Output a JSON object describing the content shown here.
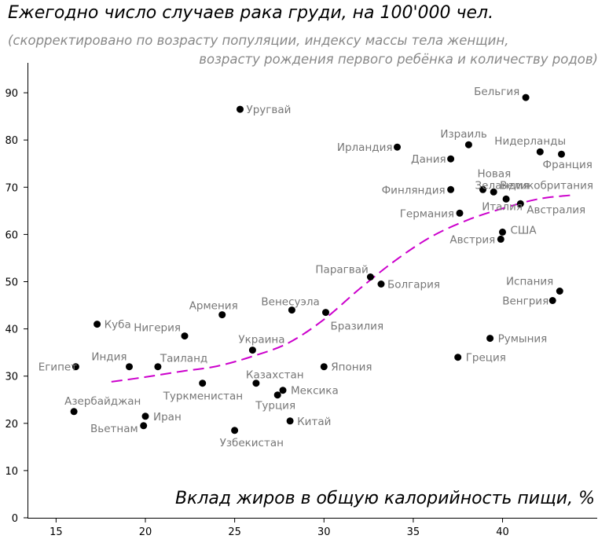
{
  "chart_data": {
    "type": "scatter",
    "title": "Ежегодно число случаев рака груди, на 100'000 чел.",
    "subtitle_line1": "(скорректировано по возрасту популяции, индексу массы тела женщин,",
    "subtitle_line2": "возрасту рождения первого ребёнка и количеству родов)",
    "xlabel": "Вклад жиров в общую калорийность пищи, %",
    "ylabel": "",
    "xlim": [
      13.4,
      45.3
    ],
    "ylim": [
      0,
      98
    ],
    "xticks": [
      15,
      20,
      25,
      30,
      35,
      40
    ],
    "yticks": [
      0,
      10,
      20,
      30,
      40,
      50,
      60,
      70,
      80,
      90
    ],
    "grid": false,
    "colors": {
      "points": "#000000",
      "labels": "#777777",
      "trend": "#cc00cc"
    },
    "points": [
      {
        "label": "Египет",
        "x": 16.1,
        "y": 32
      },
      {
        "label": "Азербайджан",
        "x": 16.0,
        "y": 22.5
      },
      {
        "label": "Куба",
        "x": 17.3,
        "y": 41
      },
      {
        "label": "Индия",
        "x": 19.1,
        "y": 32
      },
      {
        "label": "Иран",
        "x": 20.0,
        "y": 21.5
      },
      {
        "label": "Вьетнам",
        "x": 19.9,
        "y": 19.5
      },
      {
        "label": "Таиланд",
        "x": 20.7,
        "y": 32
      },
      {
        "label": "Нигерия",
        "x": 22.2,
        "y": 38.5
      },
      {
        "label": "Армения",
        "x": 24.3,
        "y": 43
      },
      {
        "label": "Туркменистан",
        "x": 23.2,
        "y": 28.5
      },
      {
        "label": "Уругвай",
        "x": 25.3,
        "y": 86.5
      },
      {
        "label": "Украина",
        "x": 26.0,
        "y": 35.5
      },
      {
        "label": "Узбекистан",
        "x": 25.0,
        "y": 18.5
      },
      {
        "label": "Казахстан",
        "x": 26.2,
        "y": 28.5
      },
      {
        "label": "Мексика",
        "x": 27.7,
        "y": 27
      },
      {
        "label": "Турция",
        "x": 27.4,
        "y": 26
      },
      {
        "label": "Китай",
        "x": 28.1,
        "y": 20.5
      },
      {
        "label": "Венесуэла",
        "x": 28.2,
        "y": 44
      },
      {
        "label": "Бразилия",
        "x": 30.1,
        "y": 43.5
      },
      {
        "label": "Япония",
        "x": 30.0,
        "y": 32
      },
      {
        "label": "Парагвай",
        "x": 32.6,
        "y": 51
      },
      {
        "label": "Болгария",
        "x": 33.2,
        "y": 49.5
      },
      {
        "label": "Ирландия",
        "x": 34.1,
        "y": 78.5
      },
      {
        "label": "Дания",
        "x": 37.1,
        "y": 76
      },
      {
        "label": "Израиль",
        "x": 38.1,
        "y": 79
      },
      {
        "label": "Финляндия",
        "x": 37.1,
        "y": 69.5
      },
      {
        "label": "Германия",
        "x": 37.6,
        "y": 64.5
      },
      {
        "label": "Новая Зеландия",
        "x": 38.9,
        "y": 69.5
      },
      {
        "label": "Италия",
        "x": 39.5,
        "y": 69
      },
      {
        "label": "Великобритания",
        "x": 40.2,
        "y": 67.5
      },
      {
        "label": "Австралия",
        "x": 41.0,
        "y": 66.5
      },
      {
        "label": "США",
        "x": 40.0,
        "y": 60.5
      },
      {
        "label": "Австрия",
        "x": 39.9,
        "y": 59
      },
      {
        "label": "Бельгия",
        "x": 41.3,
        "y": 89
      },
      {
        "label": "Нидерланды",
        "x": 42.1,
        "y": 77.5
      },
      {
        "label": "Франция",
        "x": 43.3,
        "y": 77
      },
      {
        "label": "Испания",
        "x": 43.2,
        "y": 48
      },
      {
        "label": "Венгрия",
        "x": 42.8,
        "y": 46
      },
      {
        "label": "Румыния",
        "x": 39.3,
        "y": 38
      },
      {
        "label": "Греция",
        "x": 37.5,
        "y": 34
      }
    ],
    "trend_line": [
      {
        "x": 18.1,
        "y": 28.8
      },
      {
        "x": 20.0,
        "y": 29.8
      },
      {
        "x": 22.0,
        "y": 31.0
      },
      {
        "x": 24.0,
        "y": 32.1
      },
      {
        "x": 26.0,
        "y": 34.2
      },
      {
        "x": 28.0,
        "y": 37.0
      },
      {
        "x": 30.0,
        "y": 42.0
      },
      {
        "x": 32.0,
        "y": 48.5
      },
      {
        "x": 34.0,
        "y": 54.5
      },
      {
        "x": 36.0,
        "y": 59.5
      },
      {
        "x": 38.0,
        "y": 63.0
      },
      {
        "x": 40.0,
        "y": 65.5
      },
      {
        "x": 42.0,
        "y": 67.5
      },
      {
        "x": 43.8,
        "y": 68.3
      }
    ]
  }
}
